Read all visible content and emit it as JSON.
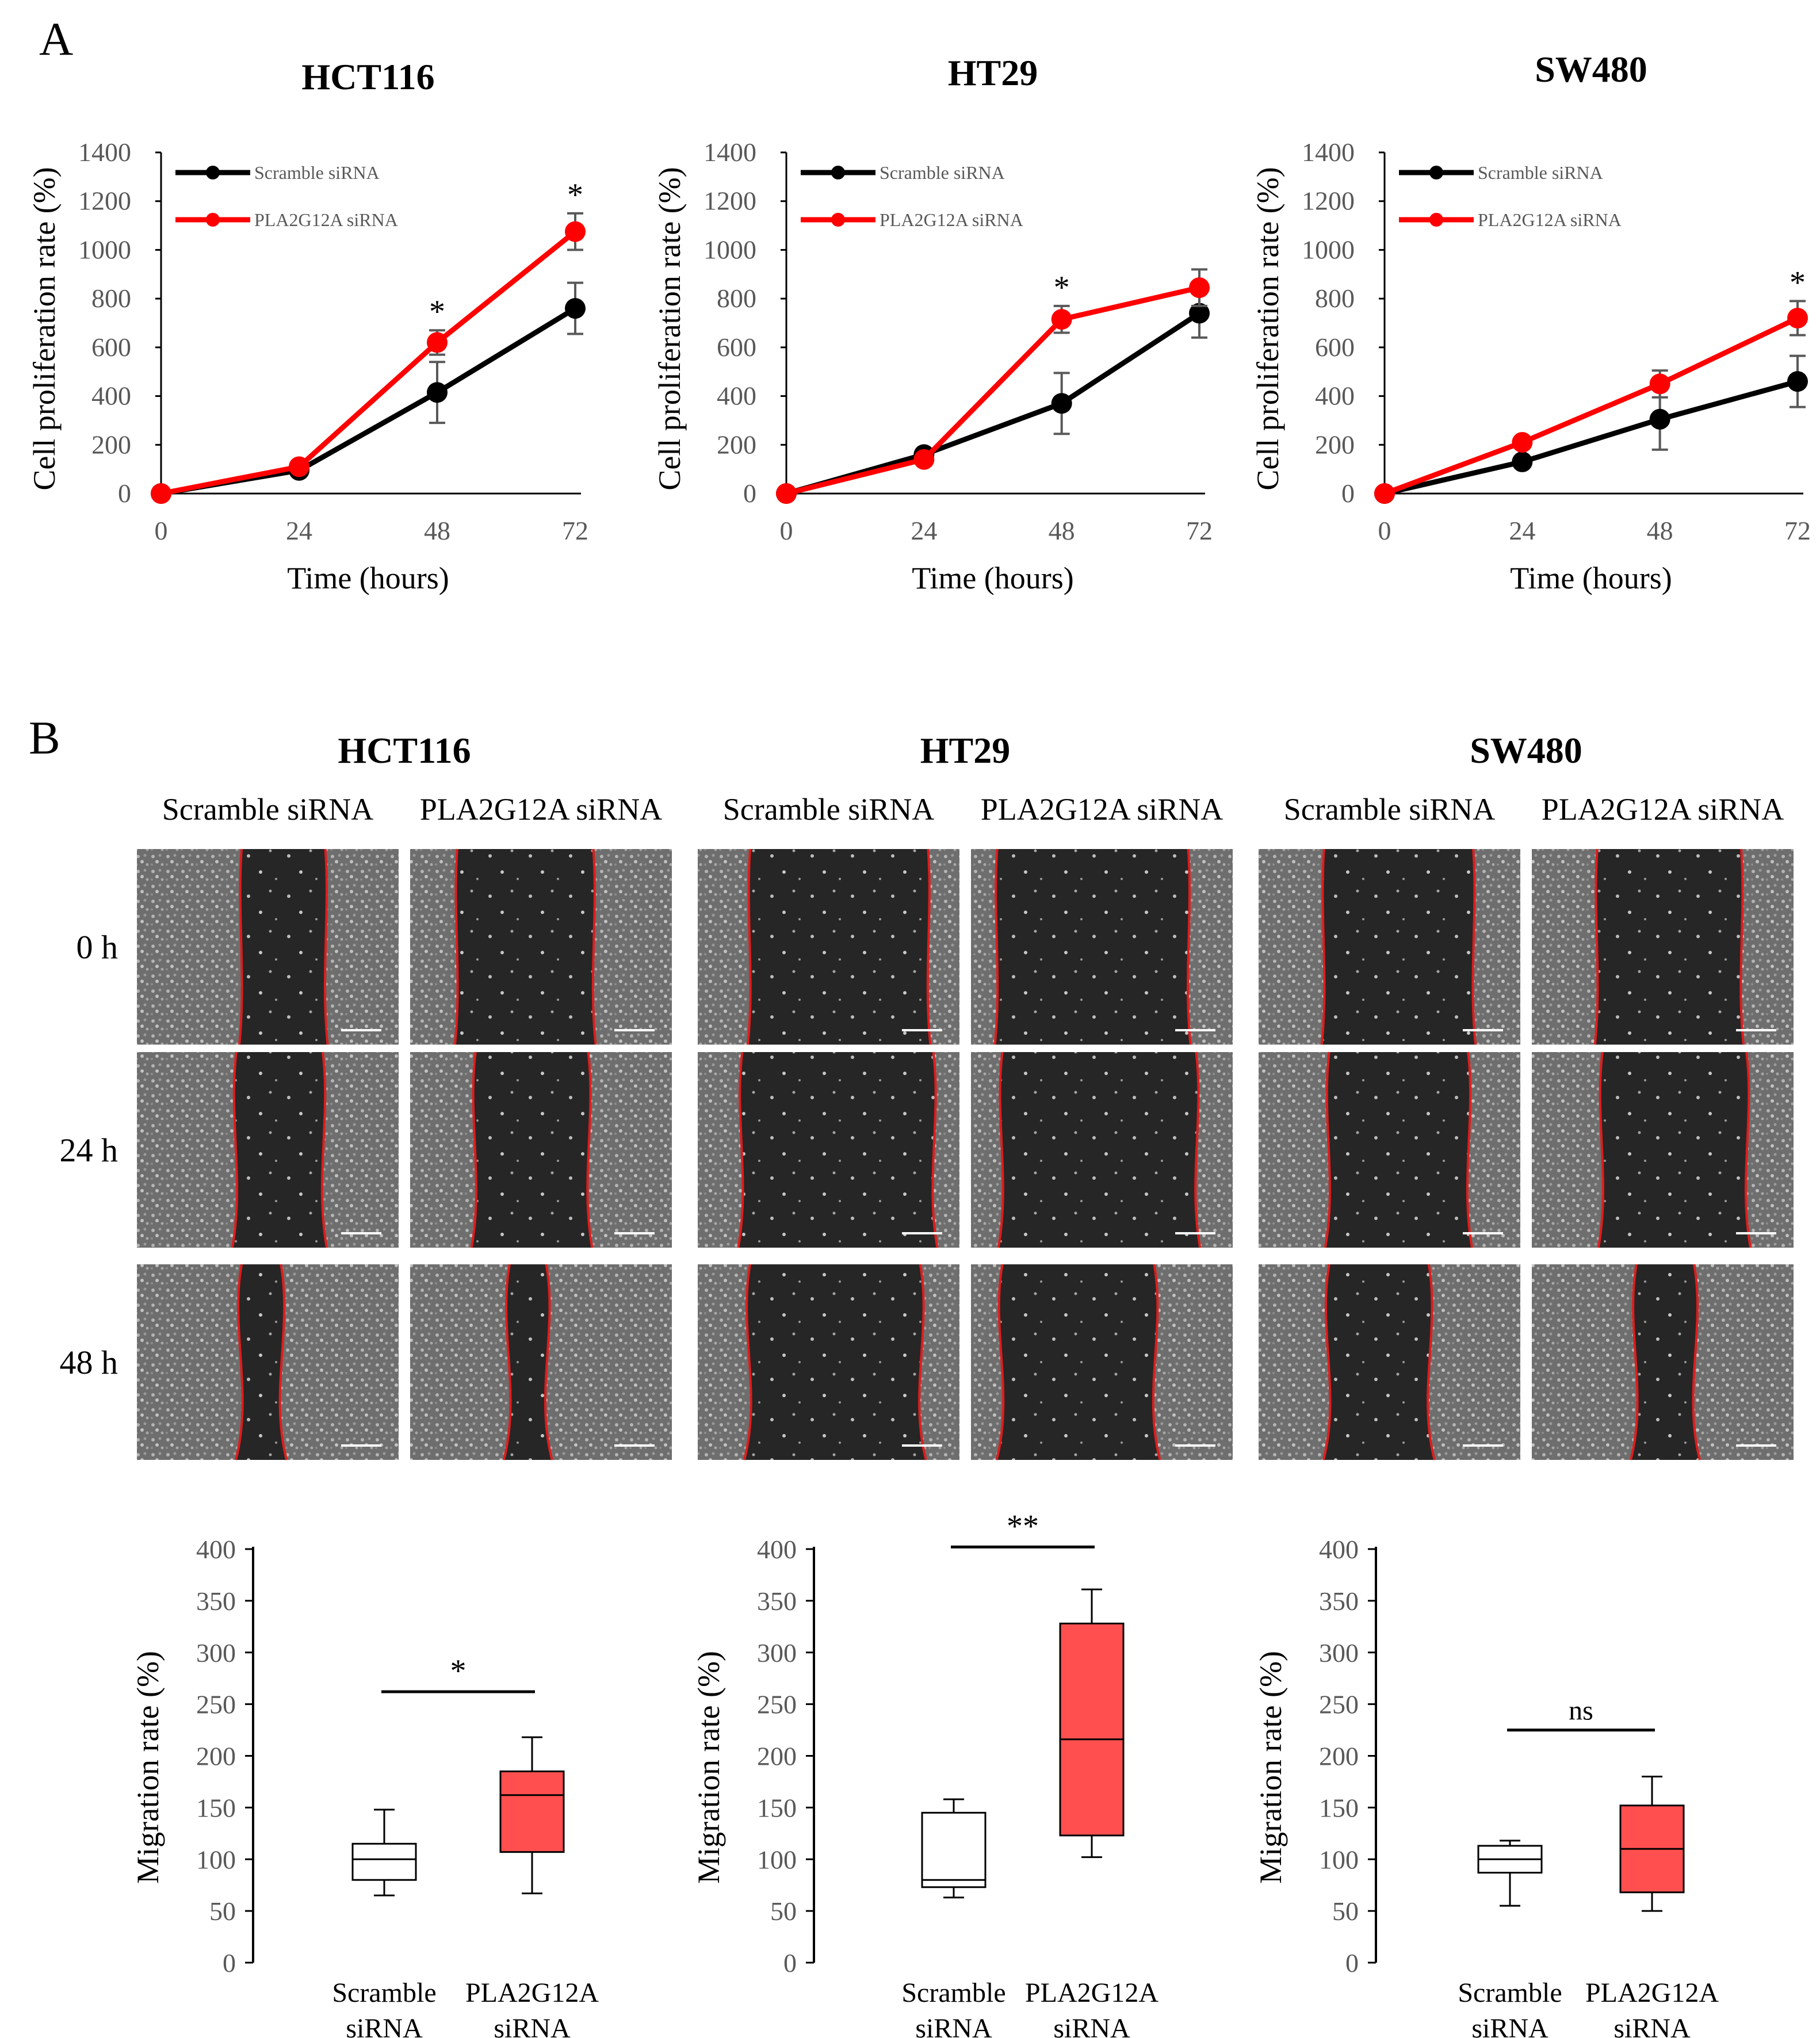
{
  "panel_a": {
    "letter": "A"
  },
  "panel_b": {
    "letter": "B"
  },
  "colors": {
    "scramble": "#000000",
    "pla": "#ff0000",
    "box_fill": "#ff4f4f",
    "wound_line": "#e01c1c"
  },
  "wound_assay": {
    "row_labels": [
      "0 h",
      "24 h",
      "48 h"
    ],
    "condition_labels": [
      "Scramble siRNA",
      "PLA2G12A siRNA"
    ]
  },
  "chart_data": [
    {
      "type": "line",
      "title": "HCT116",
      "xlabel": "Time (hours)",
      "ylabel": "Cell proliferation rate (%)",
      "x": [
        0,
        24,
        48,
        72
      ],
      "ylim": [
        0,
        1400
      ],
      "yticks": [
        0,
        200,
        400,
        600,
        800,
        1000,
        1200,
        1400
      ],
      "legend": "top-left",
      "series": [
        {
          "name": "Scramble siRNA",
          "values": [
            0,
            95,
            415,
            760
          ],
          "errors": [
            0,
            10,
            125,
            105
          ],
          "color": "#000000"
        },
        {
          "name": "PLA2G12A siRNA",
          "values": [
            0,
            110,
            620,
            1075
          ],
          "errors": [
            0,
            10,
            50,
            75
          ],
          "color": "#ff0000"
        }
      ],
      "annotations": [
        {
          "x": 48,
          "text": "*"
        },
        {
          "x": 72,
          "text": "*"
        }
      ]
    },
    {
      "type": "line",
      "title": "HT29",
      "xlabel": "Time (hours)",
      "ylabel": "Cell proliferation rate (%)",
      "x": [
        0,
        24,
        48,
        72
      ],
      "ylim": [
        0,
        1400
      ],
      "yticks": [
        0,
        200,
        400,
        600,
        800,
        1000,
        1200,
        1400
      ],
      "legend": "top-left",
      "series": [
        {
          "name": "Scramble siRNA",
          "values": [
            0,
            160,
            370,
            740
          ],
          "errors": [
            0,
            10,
            125,
            100
          ],
          "color": "#000000"
        },
        {
          "name": "PLA2G12A siRNA",
          "values": [
            0,
            140,
            715,
            845
          ],
          "errors": [
            0,
            10,
            55,
            75
          ],
          "color": "#ff0000"
        }
      ],
      "annotations": [
        {
          "x": 48,
          "text": "*"
        }
      ]
    },
    {
      "type": "line",
      "title": "SW480",
      "xlabel": "Time (hours)",
      "ylabel": "Cell proliferation rate (%)",
      "x": [
        0,
        24,
        48,
        72
      ],
      "ylim": [
        0,
        1400
      ],
      "yticks": [
        0,
        200,
        400,
        600,
        800,
        1000,
        1200,
        1400
      ],
      "legend": "top-left",
      "series": [
        {
          "name": "Scramble siRNA",
          "values": [
            0,
            130,
            305,
            460
          ],
          "errors": [
            0,
            10,
            125,
            105
          ],
          "color": "#000000"
        },
        {
          "name": "PLA2G12A siRNA",
          "values": [
            0,
            210,
            450,
            720
          ],
          "errors": [
            0,
            10,
            55,
            70
          ],
          "color": "#ff0000"
        }
      ],
      "annotations": [
        {
          "x": 72,
          "text": "*"
        }
      ]
    },
    {
      "type": "box",
      "title": "HCT116",
      "ylabel": "Migration rate (%)",
      "ylim": [
        0,
        400
      ],
      "yticks": [
        0,
        50,
        100,
        150,
        200,
        250,
        300,
        350,
        400
      ],
      "categories": [
        [
          "Scramble",
          "siRNA"
        ],
        [
          "PLA2G12A",
          "siRNA"
        ]
      ],
      "boxes": [
        {
          "min": 65,
          "q1": 80,
          "median": 100,
          "q3": 115,
          "max": 148,
          "fill": "#ffffff"
        },
        {
          "min": 67,
          "q1": 107,
          "median": 162,
          "q3": 185,
          "max": 218,
          "fill": "#ff4f4f"
        }
      ],
      "significance": "*",
      "sig_y": 262
    },
    {
      "type": "box",
      "title": "HT29",
      "ylabel": "Migration rate (%)",
      "ylim": [
        0,
        400
      ],
      "yticks": [
        0,
        50,
        100,
        150,
        200,
        250,
        300,
        350,
        400
      ],
      "categories": [
        [
          "Scramble",
          "siRNA"
        ],
        [
          "PLA2G12A",
          "siRNA"
        ]
      ],
      "boxes": [
        {
          "min": 63,
          "q1": 73,
          "median": 80,
          "q3": 145,
          "max": 158,
          "fill": "#ffffff"
        },
        {
          "min": 102,
          "q1": 123,
          "median": 216,
          "q3": 328,
          "max": 361,
          "fill": "#ff4f4f"
        }
      ],
      "significance": "**",
      "sig_y": 402
    },
    {
      "type": "box",
      "title": "SW480",
      "ylabel": "Migration rate (%)",
      "ylim": [
        0,
        400
      ],
      "yticks": [
        0,
        50,
        100,
        150,
        200,
        250,
        300,
        350,
        400
      ],
      "categories": [
        [
          "Scramble",
          "siRNA"
        ],
        [
          "PLA2G12A",
          "siRNA"
        ]
      ],
      "boxes": [
        {
          "min": 55,
          "q1": 87,
          "median": 100,
          "q3": 113,
          "max": 118,
          "fill": "#ffffff"
        },
        {
          "min": 50,
          "q1": 68,
          "median": 110,
          "q3": 152,
          "max": 180,
          "fill": "#ff4f4f"
        }
      ],
      "significance": "ns",
      "sig_y": 225
    }
  ]
}
